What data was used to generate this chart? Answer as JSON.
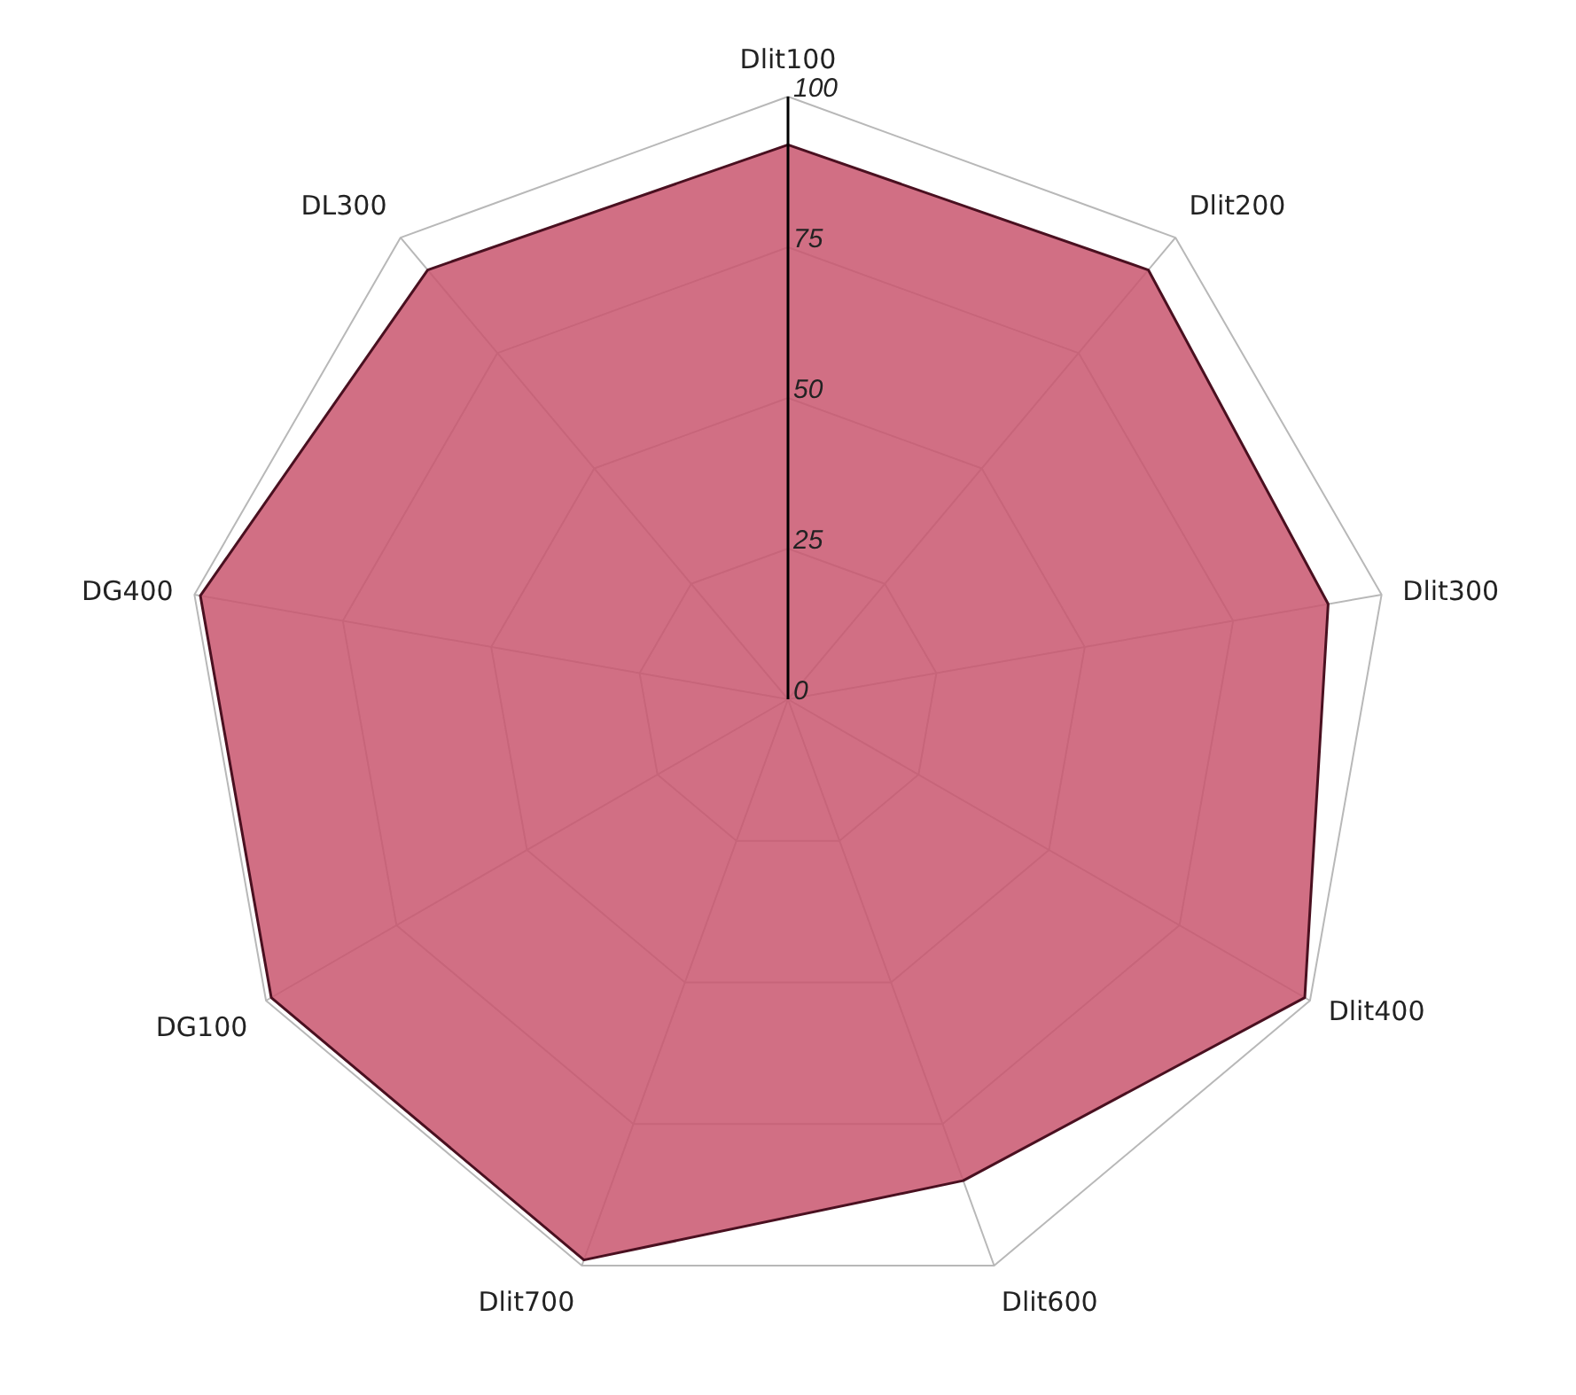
{
  "chart_data": {
    "type": "radar",
    "categories": [
      "Dlit100",
      "Dlit200",
      "Dlit300",
      "Dlit400",
      "Dlit600",
      "Dlit700",
      "DG100",
      "DG400",
      "DL300"
    ],
    "series": [
      {
        "color": "#c9566f",
        "values": [
          92,
          93,
          91,
          99,
          85,
          99,
          99,
          99,
          93
        ]
      }
    ],
    "ylim": [
      0,
      100
    ],
    "yticks": [
      0,
      25,
      50,
      75,
      100
    ],
    "grid": true
  }
}
